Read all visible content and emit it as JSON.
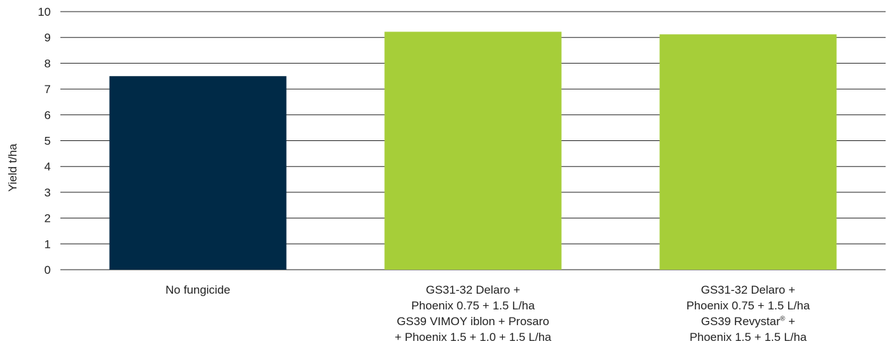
{
  "chart_data": {
    "type": "bar",
    "title": "",
    "ylabel": "Yield t/ha",
    "xlabel": "",
    "ylim": [
      0,
      10
    ],
    "yticks": [
      0,
      1,
      2,
      3,
      4,
      5,
      6,
      7,
      8,
      9,
      10
    ],
    "grid": true,
    "categories": [
      "No fungicide",
      "GS31-32 Delaro + Phoenix 0.75 + 1.5 L/ha GS39 VIMOY iblon + Prosaro + Phoenix 1.5 + 1.0 + 1.5 L/ha",
      "GS31-32 Delaro + Phoenix 0.75 + 1.5 L/ha GS39 Revystar® + Phoenix 1.5 + 1.5 L/ha"
    ],
    "category_lines": [
      [
        "No fungicide"
      ],
      [
        "GS31-32 Delaro +",
        "Phoenix 0.75 + 1.5 L/ha",
        "GS39 VIMOY iblon + Prosaro",
        "+ Phoenix 1.5 + 1.0 + 1.5 L/ha"
      ],
      [
        "GS31-32 Delaro +",
        "Phoenix 0.75 + 1.5 L/ha",
        "GS39 Revystar® +",
        "Phoenix 1.5 + 1.5 L/ha"
      ]
    ],
    "values": [
      7.5,
      9.22,
      9.12
    ],
    "colors": [
      "#002a47",
      "#a6ce39",
      "#a6ce39"
    ]
  }
}
